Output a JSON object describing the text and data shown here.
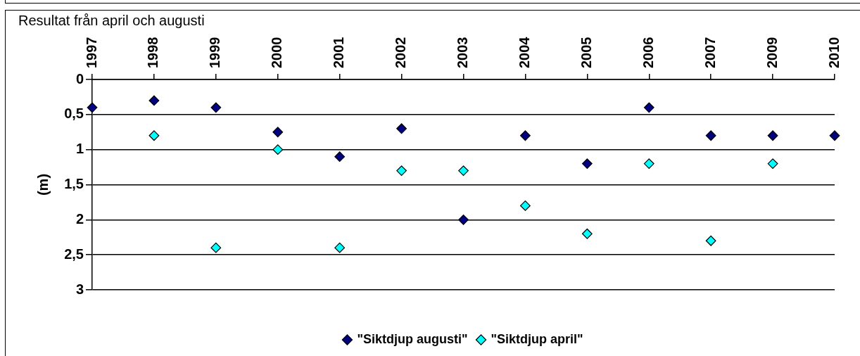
{
  "chart_data": {
    "type": "scatter",
    "title": "Resultat från april och augusti",
    "ylabel": "(m)",
    "categories": [
      "1997",
      "1998",
      "1999",
      "2000",
      "2001",
      "2002",
      "2003",
      "2004",
      "2005",
      "2006",
      "2007",
      "2009",
      "2010"
    ],
    "series": [
      {
        "name": "\"Siktdjup augusti\"",
        "color": "#000080",
        "values": [
          0.4,
          0.3,
          0.4,
          0.75,
          1.1,
          0.7,
          2.0,
          0.8,
          1.2,
          0.4,
          0.8,
          0.8,
          0.8
        ]
      },
      {
        "name": "\"Siktdjup april\"",
        "color": "#00ffff",
        "values": [
          null,
          0.8,
          2.4,
          1.0,
          2.4,
          1.3,
          1.3,
          1.8,
          2.2,
          1.2,
          2.3,
          1.2,
          null
        ]
      }
    ],
    "ylim": [
      3,
      0
    ],
    "yticks": [
      0,
      {
        "value": 0.5,
        "label": "0,5"
      },
      1,
      {
        "value": 1.5,
        "label": "1,5"
      },
      2,
      {
        "value": 2.5,
        "label": "2,5"
      },
      3
    ],
    "grid": "y",
    "legend": "bottom",
    "marker": "diamond"
  }
}
